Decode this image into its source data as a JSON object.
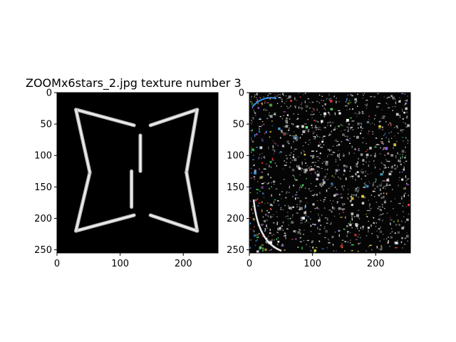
{
  "chart_data": [
    {
      "type": "image",
      "title": "ZOOMx6stars_2.jpg texture number 3",
      "content": "grayscale input image",
      "xlim": [
        0,
        255
      ],
      "ylim": [
        255,
        0
      ],
      "xticks": [
        0,
        100,
        200
      ],
      "yticks": [
        0,
        50,
        100,
        150,
        200,
        250
      ],
      "background_color": "#000000",
      "stroke_color": "#d8d8d8"
    },
    {
      "type": "image",
      "title": "",
      "content": "colored noisy texture output",
      "xlim": [
        0,
        255
      ],
      "ylim": [
        255,
        0
      ],
      "xticks": [
        0,
        100,
        200
      ],
      "yticks": [
        0,
        50,
        100,
        150,
        200,
        250
      ],
      "background_color": "#050505"
    }
  ]
}
